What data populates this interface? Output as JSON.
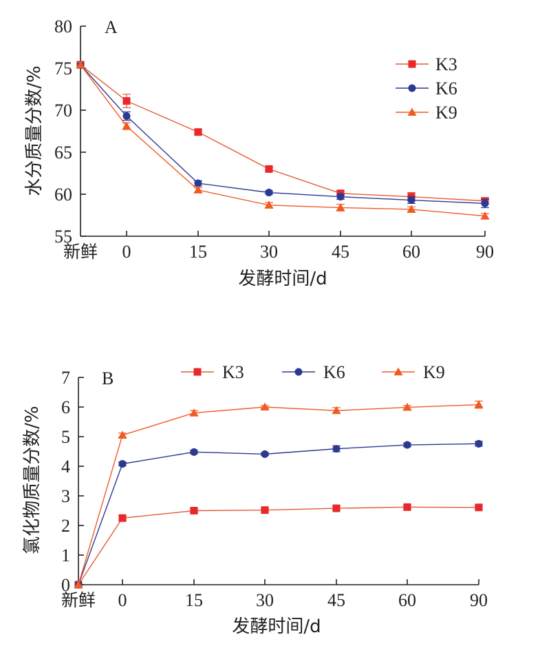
{
  "chart_data": [
    {
      "type": "line",
      "panel_label": "A",
      "xlabel": "发酵时间/d",
      "ylabel": "水分质量分数/%",
      "categories": [
        "新鲜",
        "0",
        "15",
        "30",
        "45",
        "60",
        "90"
      ],
      "ylim": [
        55,
        80
      ],
      "yticks": [
        55,
        60,
        65,
        70,
        75,
        80
      ],
      "legend_position": "top-right",
      "legend_layout": "vertical",
      "series": [
        {
          "name": "K3",
          "marker": "square",
          "color": "#e8282b",
          "line_color": "#e45a35",
          "values": [
            75.4,
            71.1,
            67.4,
            63.0,
            60.1,
            59.7,
            59.2
          ],
          "errors": [
            0.3,
            0.8,
            0.3,
            0.2,
            0.3,
            0.5,
            0.3
          ]
        },
        {
          "name": "K6",
          "marker": "circle",
          "color": "#2b3990",
          "line_color": "#2b3990",
          "values": [
            75.4,
            69.3,
            61.3,
            60.2,
            59.7,
            59.3,
            58.9
          ],
          "errors": [
            0.3,
            0.5,
            0.3,
            0.2,
            0.3,
            0.4,
            0.5
          ]
        },
        {
          "name": "K9",
          "marker": "triangle",
          "color": "#f15a24",
          "line_color": "#f15a24",
          "values": [
            75.4,
            68.1,
            60.5,
            58.7,
            58.4,
            58.2,
            57.4
          ],
          "errors": [
            0.3,
            0.4,
            0.3,
            0.3,
            0.4,
            0.3,
            0.3
          ]
        }
      ]
    },
    {
      "type": "line",
      "panel_label": "B",
      "xlabel": "发酵时间/d",
      "ylabel": "氯化物质量分数/%",
      "categories": [
        "新鲜",
        "0",
        "15",
        "30",
        "45",
        "60",
        "90"
      ],
      "ylim": [
        0,
        7
      ],
      "yticks": [
        0,
        1,
        2,
        3,
        4,
        5,
        6,
        7
      ],
      "legend_position": "top",
      "legend_layout": "horizontal",
      "series": [
        {
          "name": "K3",
          "marker": "square",
          "color": "#e8282b",
          "line_color": "#e45a35",
          "values": [
            0.0,
            2.25,
            2.5,
            2.52,
            2.58,
            2.62,
            2.61
          ],
          "errors": [
            0.0,
            0.07,
            0.06,
            0.06,
            0.06,
            0.06,
            0.06
          ]
        },
        {
          "name": "K6",
          "marker": "circle",
          "color": "#2b3990",
          "line_color": "#2b3990",
          "values": [
            0.0,
            4.08,
            4.48,
            4.41,
            4.59,
            4.72,
            4.76
          ],
          "errors": [
            0.0,
            0.06,
            0.06,
            0.05,
            0.1,
            0.06,
            0.08
          ]
        },
        {
          "name": "K9",
          "marker": "triangle",
          "color": "#f15a24",
          "line_color": "#f15a24",
          "values": [
            0.0,
            5.05,
            5.8,
            6.0,
            5.88,
            5.99,
            6.08
          ],
          "errors": [
            0.0,
            0.07,
            0.08,
            0.05,
            0.1,
            0.06,
            0.12
          ]
        }
      ]
    }
  ]
}
